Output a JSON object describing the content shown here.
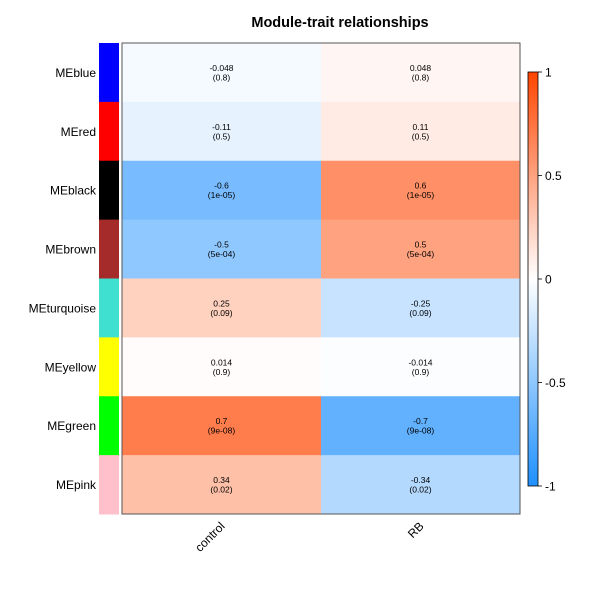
{
  "chart_data": {
    "type": "heatmap",
    "title": "Module-trait relationships",
    "xlabel": "",
    "ylabel": "",
    "columns": [
      "control",
      "RB"
    ],
    "rows": [
      {
        "label": "MEblue",
        "color": "#0000FF",
        "values": [
          -0.048,
          0.048
        ],
        "pvalues": [
          "(0.8)",
          "(0.8)"
        ],
        "texts": [
          "-0.048",
          "0.048"
        ]
      },
      {
        "label": "MEred",
        "color": "#FF0000",
        "values": [
          -0.11,
          0.11
        ],
        "pvalues": [
          "(0.5)",
          "(0.5)"
        ],
        "texts": [
          "-0.11",
          "0.11"
        ]
      },
      {
        "label": "MEblack",
        "color": "#000000",
        "values": [
          -0.6,
          0.6
        ],
        "pvalues": [
          "(1e-05)",
          "(1e-05)"
        ],
        "texts": [
          "-0.6",
          "0.6"
        ]
      },
      {
        "label": "MEbrown",
        "color": "#A52A2A",
        "values": [
          -0.5,
          0.5
        ],
        "pvalues": [
          "(5e-04)",
          "(5e-04)"
        ],
        "texts": [
          "-0.5",
          "0.5"
        ]
      },
      {
        "label": "MEturquoise",
        "color": "#40E0D0",
        "values": [
          0.25,
          -0.25
        ],
        "pvalues": [
          "(0.09)",
          "(0.09)"
        ],
        "texts": [
          "0.25",
          "-0.25"
        ]
      },
      {
        "label": "MEyellow",
        "color": "#FFFF00",
        "values": [
          0.014,
          -0.014
        ],
        "pvalues": [
          "(0.9)",
          "(0.9)"
        ],
        "texts": [
          "0.014",
          "-0.014"
        ]
      },
      {
        "label": "MEgreen",
        "color": "#00FF00",
        "values": [
          0.7,
          -0.7
        ],
        "pvalues": [
          "(9e-08)",
          "(9e-08)"
        ],
        "texts": [
          "0.7",
          "-0.7"
        ]
      },
      {
        "label": "MEpink",
        "color": "#FFC0CB",
        "values": [
          0.34,
          -0.34
        ],
        "pvalues": [
          "(0.02)",
          "(0.02)"
        ],
        "texts": [
          "0.34",
          "-0.34"
        ]
      }
    ],
    "color_scale": {
      "min": -1,
      "max": 1,
      "ticks": [
        1,
        0.5,
        0,
        -0.5,
        -1
      ],
      "tick_labels": [
        "1",
        "0.5",
        "0",
        "-0.5",
        "-1"
      ],
      "low_color": "#1E90FF",
      "mid_color": "#FFFFFF",
      "high_color": "#FF4500"
    }
  }
}
